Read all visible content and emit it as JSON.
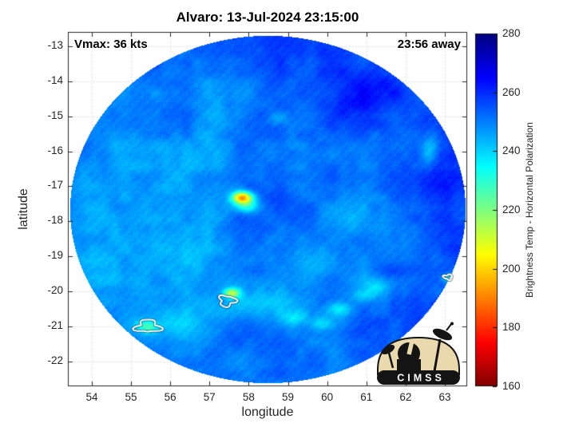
{
  "title": "Alvaro: 13-Jul-2024 23:15:00",
  "annotations": {
    "vmax": "Vmax: 36 kts",
    "time_away": "23:56 away"
  },
  "axes": {
    "xlabel": "longitude",
    "ylabel": "latitude",
    "x_ticks": [
      54,
      55,
      56,
      57,
      58,
      59,
      60,
      61,
      62,
      63
    ],
    "y_ticks": [
      -13,
      -14,
      -15,
      -16,
      -17,
      -18,
      -19,
      -20,
      -21,
      -22
    ]
  },
  "colorbar": {
    "label": "Brightness Temp - Horizontal Polarization",
    "min": 160,
    "max": 280,
    "ticks": [
      160,
      180,
      200,
      220,
      240,
      260,
      280
    ],
    "colormap": "jet-reversed"
  },
  "logo": {
    "text": "CIMSS"
  },
  "chart_data": {
    "type": "heatmap",
    "title": "Alvaro: 13-Jul-2024 23:15:00",
    "xlabel": "longitude",
    "ylabel": "latitude",
    "value_label": "Brightness Temp - Horizontal Polarization",
    "value_range": [
      160,
      280
    ],
    "x_range": [
      53.39,
      63.57
    ],
    "y_range": [
      -22.71,
      -12.59
    ],
    "grid": true,
    "swath": {
      "center_lon": 58.48,
      "center_lat": -17.65,
      "radius_lon": 5.04,
      "radius_lat": 4.96
    },
    "base_temp": 252,
    "features_legend": "gaussian blobs: [lon, lat, temp_delta_K, sigma_lon_deg, sigma_lat_deg]",
    "features": [
      [
        55.3,
        -17.8,
        -9,
        1.5,
        2.0
      ],
      [
        54.6,
        -20.3,
        -6,
        0.8,
        0.9
      ],
      [
        56.2,
        -20.9,
        -7,
        0.9,
        0.6
      ],
      [
        58.7,
        -20.35,
        -7,
        1.6,
        0.6
      ],
      [
        57.3,
        -16.5,
        -5,
        0.8,
        1.0
      ],
      [
        56.6,
        -18.9,
        -5,
        0.9,
        0.8
      ],
      [
        59.7,
        -19.1,
        -6,
        0.9,
        0.45
      ],
      [
        60.6,
        -17.9,
        -6,
        0.7,
        0.9
      ],
      [
        57.2,
        -14.2,
        -4,
        1.0,
        1.2
      ],
      [
        58.74,
        -15.05,
        -10,
        0.25,
        0.2
      ],
      [
        62.6,
        -15.9,
        -12,
        0.22,
        0.5
      ],
      [
        53.9,
        -18.8,
        -5,
        0.6,
        1.2
      ],
      [
        57.83,
        -17.31,
        -56,
        0.27,
        0.17
      ],
      [
        57.95,
        -17.55,
        -20,
        0.3,
        0.2
      ],
      [
        57.56,
        -20.04,
        -34,
        0.2,
        0.14
      ],
      [
        55.43,
        -21.0,
        -20,
        0.28,
        0.18
      ],
      [
        60.3,
        -20.5,
        -16,
        0.3,
        0.22
      ],
      [
        61.3,
        -19.85,
        -13,
        0.4,
        0.28
      ],
      [
        59.85,
        -20.9,
        -12,
        0.28,
        0.2
      ],
      [
        59.2,
        -20.75,
        -10,
        0.3,
        0.2
      ],
      [
        60.9,
        -20.1,
        -10,
        0.3,
        0.2
      ],
      [
        63.08,
        -19.59,
        -16,
        0.16,
        0.12
      ],
      [
        61.0,
        -14.4,
        9,
        1.3,
        0.9
      ],
      [
        63.1,
        -17.3,
        7,
        0.8,
        2.0
      ],
      [
        59.2,
        -13.2,
        6,
        1.5,
        0.7
      ],
      [
        62.0,
        -20.8,
        5,
        1.0,
        0.8
      ],
      [
        58.75,
        -17.35,
        4,
        0.5,
        0.4
      ]
    ],
    "contours": [
      {
        "lon": 55.43,
        "lat": -21.0,
        "rx": 0.3,
        "ry": 0.17
      },
      {
        "lon": 57.45,
        "lat": -20.27,
        "rx": 0.2,
        "ry": 0.15
      },
      {
        "lon": 63.08,
        "lat": -19.59,
        "rx": 0.11,
        "ry": 0.07
      }
    ],
    "noise": {
      "mottle_amp": 3.5,
      "mottle2_amp": 2.2,
      "speckle_amp": 1.2,
      "stripe_amp": 0.7
    }
  }
}
